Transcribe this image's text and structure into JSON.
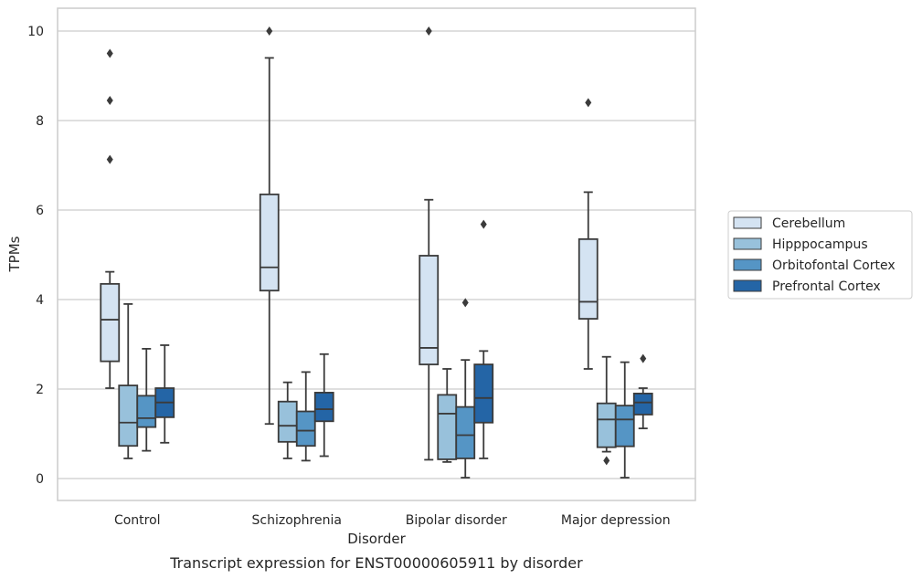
{
  "chart_data": {
    "type": "box",
    "title": "",
    "caption": "Transcript expression for ENST00000605911 by disorder",
    "xlabel": "Disorder",
    "ylabel": "TPMs",
    "ylim": [
      -0.45,
      10.5
    ],
    "yticks": [
      0,
      2,
      4,
      6,
      8,
      10
    ],
    "grid": "horizontal",
    "legend_position": "right",
    "categories": [
      "Control",
      "Schizophrenia",
      "Bipolar disorder",
      "Major depression"
    ],
    "series": [
      {
        "name": "Cerebellum",
        "color": "#d4e3f2",
        "boxes": [
          {
            "whisker_low": 2.02,
            "q1": 2.62,
            "median": 3.55,
            "q3": 4.35,
            "whisker_high": 4.62,
            "outliers": [
              9.5,
              8.45,
              7.13
            ]
          },
          {
            "whisker_low": 1.22,
            "q1": 4.2,
            "median": 4.72,
            "q3": 6.35,
            "whisker_high": 9.4,
            "outliers": [
              10.0
            ]
          },
          {
            "whisker_low": 0.42,
            "q1": 2.55,
            "median": 2.92,
            "q3": 4.98,
            "whisker_high": 6.23,
            "outliers": [
              10.0
            ]
          },
          {
            "whisker_low": 2.45,
            "q1": 3.57,
            "median": 3.95,
            "q3": 5.35,
            "whisker_high": 6.4,
            "outliers": [
              8.4
            ]
          }
        ]
      },
      {
        "name": "Hipppocampus",
        "color": "#98c1db",
        "boxes": [
          {
            "whisker_low": 0.45,
            "q1": 0.73,
            "median": 1.25,
            "q3": 2.08,
            "whisker_high": 3.9,
            "outliers": []
          },
          {
            "whisker_low": 0.45,
            "q1": 0.82,
            "median": 1.18,
            "q3": 1.72,
            "whisker_high": 2.15,
            "outliers": []
          },
          {
            "whisker_low": 0.37,
            "q1": 0.43,
            "median": 1.45,
            "q3": 1.87,
            "whisker_high": 2.45,
            "outliers": []
          },
          {
            "whisker_low": 0.6,
            "q1": 0.7,
            "median": 1.32,
            "q3": 1.68,
            "whisker_high": 2.72,
            "outliers": [
              0.4
            ]
          }
        ]
      },
      {
        "name": "Orbitofontal Cortex",
        "color": "#5595c5",
        "boxes": [
          {
            "whisker_low": 0.62,
            "q1": 1.15,
            "median": 1.35,
            "q3": 1.85,
            "whisker_high": 2.9,
            "outliers": []
          },
          {
            "whisker_low": 0.4,
            "q1": 0.73,
            "median": 1.07,
            "q3": 1.5,
            "whisker_high": 2.38,
            "outliers": []
          },
          {
            "whisker_low": 0.02,
            "q1": 0.45,
            "median": 0.97,
            "q3": 1.6,
            "whisker_high": 2.65,
            "outliers": [
              3.93
            ]
          },
          {
            "whisker_low": 0.02,
            "q1": 0.72,
            "median": 1.32,
            "q3": 1.63,
            "whisker_high": 2.6,
            "outliers": []
          }
        ]
      },
      {
        "name": "Prefrontal Cortex",
        "color": "#2465a6",
        "boxes": [
          {
            "whisker_low": 0.8,
            "q1": 1.37,
            "median": 1.7,
            "q3": 2.02,
            "whisker_high": 2.98,
            "outliers": []
          },
          {
            "whisker_low": 0.5,
            "q1": 1.28,
            "median": 1.55,
            "q3": 1.92,
            "whisker_high": 2.78,
            "outliers": []
          },
          {
            "whisker_low": 0.45,
            "q1": 1.25,
            "median": 1.8,
            "q3": 2.55,
            "whisker_high": 2.85,
            "outliers": [
              5.68
            ]
          },
          {
            "whisker_low": 1.12,
            "q1": 1.43,
            "median": 1.7,
            "q3": 1.9,
            "whisker_high": 2.02,
            "outliers": [
              2.68
            ]
          }
        ]
      }
    ]
  }
}
